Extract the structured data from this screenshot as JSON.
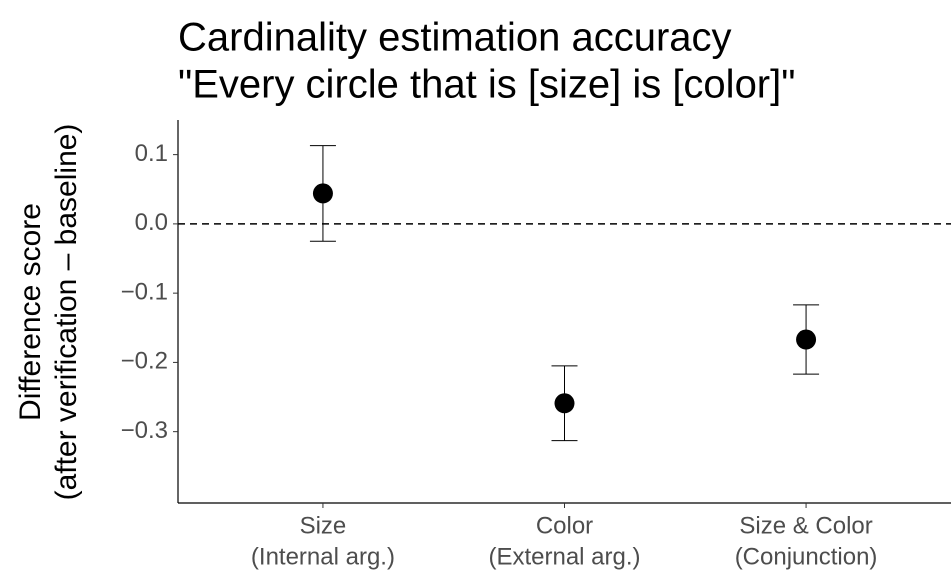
{
  "chart_data": {
    "type": "pointrange",
    "title": [
      "Cardinality estimation accuracy",
      "\"Every circle that is [size] is [color]\""
    ],
    "ylabel": [
      "Difference score",
      "(after verification – baseline)"
    ],
    "categories": [
      [
        "Size",
        "(Internal arg.)"
      ],
      [
        "Color",
        "(External arg.)"
      ],
      [
        "Size & Color",
        "(Conjunction)"
      ]
    ],
    "values": [
      0.044,
      -0.259,
      -0.167
    ],
    "errors": [
      0.069,
      0.054,
      0.05
    ],
    "color": "#000000",
    "reference_line": 0,
    "ylim": [
      -0.403,
      0.15
    ],
    "yticks": [
      {
        "value": 0.1,
        "label": "0.1"
      },
      {
        "value": 0,
        "label": "0.0"
      },
      {
        "value": -0.1,
        "label": "−0.1"
      },
      {
        "value": -0.2,
        "label": "−0.2"
      },
      {
        "value": -0.3,
        "label": "−0.3"
      }
    ],
    "grid": false
  }
}
